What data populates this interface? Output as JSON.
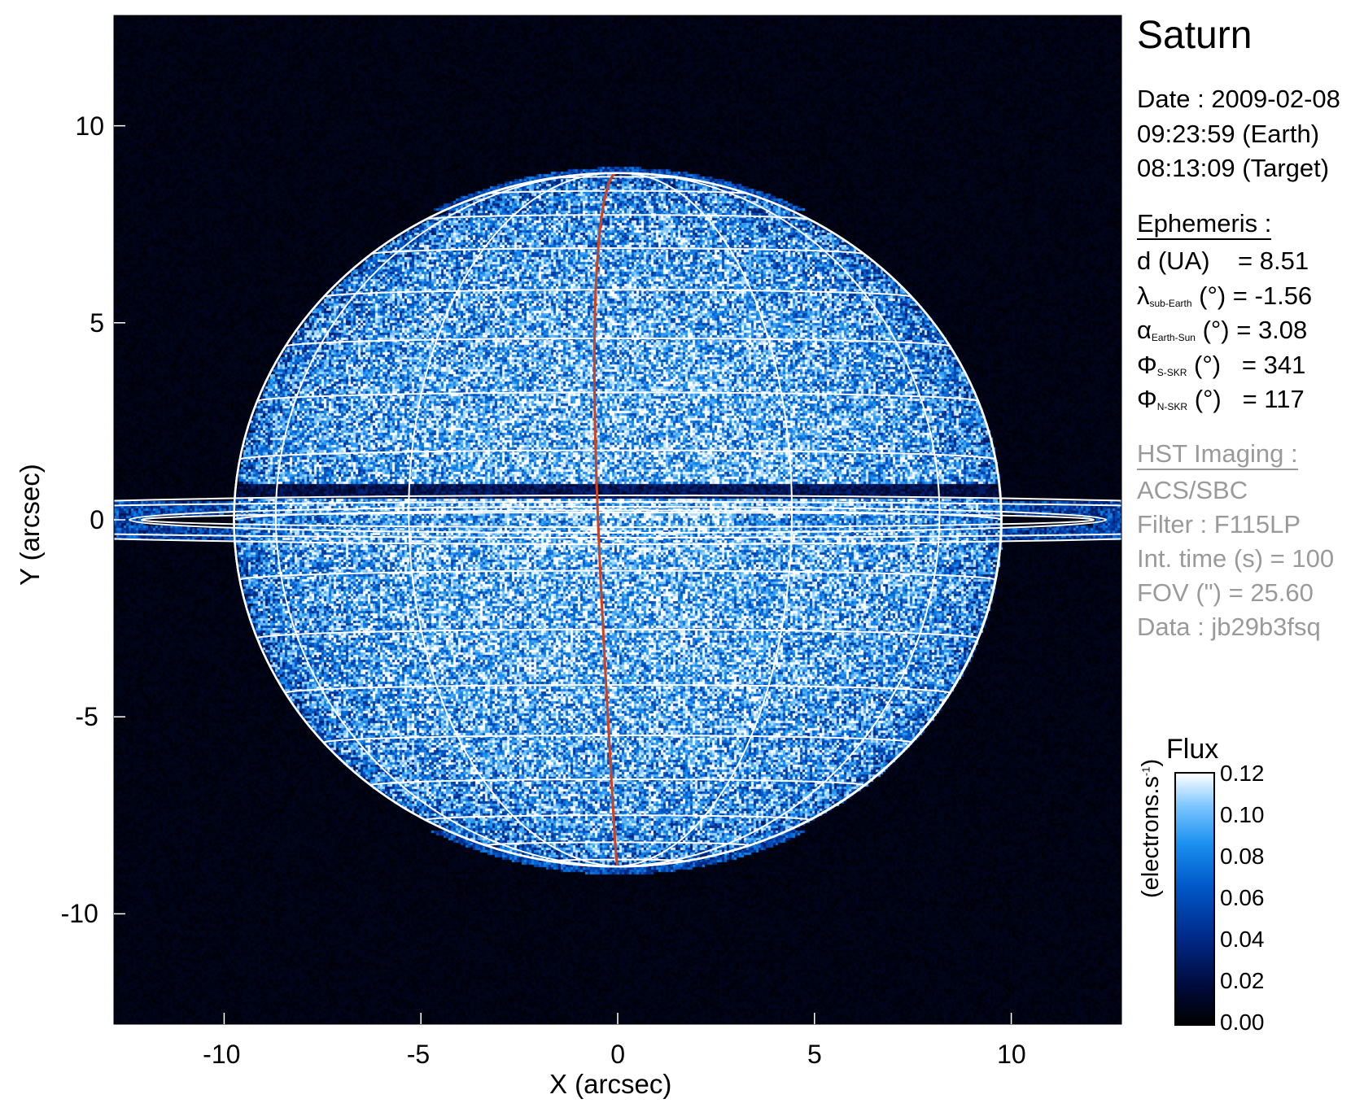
{
  "title": "Saturn",
  "observation": {
    "date_line": "Date : 2009-02-08",
    "earth_time_line": "09:23:59 (Earth)",
    "target_time_line": "08:13:09 (Target)"
  },
  "ephemeris": {
    "heading": "Ephemeris :",
    "rows": [
      {
        "symbol": "d",
        "sub": "",
        "unit": " (UA)",
        "eq": "    = 8.51"
      },
      {
        "symbol": "λ",
        "sub": "sub-Earth",
        "unit": " (°)",
        "eq": " = -1.56"
      },
      {
        "symbol": "α",
        "sub": "Earth-Sun",
        "unit": " (°)",
        "eq": " = 3.08"
      },
      {
        "symbol": "Φ",
        "sub": "S-SKR",
        "unit": " (°)",
        "eq": "   = 341"
      },
      {
        "symbol": "Φ",
        "sub": "N-SKR",
        "unit": " (°)",
        "eq": "   = 117"
      }
    ]
  },
  "hst": {
    "heading": "HST Imaging :",
    "lines": [
      "ACS/SBC",
      "Filter : F115LP",
      "Int. time (s) = 100",
      "FOV (\") = 25.60",
      "Data : jb29b3fsq"
    ]
  },
  "colors": {
    "text_gray": "#9a9a9a",
    "grid": "#ffffff",
    "central_meridian": "#d2421a",
    "background": "#000008"
  },
  "chart_data": {
    "type": "heatmap",
    "title": "Saturn",
    "xlabel": "X (arcsec)",
    "ylabel": "Y (arcsec)",
    "xlim": [
      -12.8,
      12.8
    ],
    "ylim": [
      -12.8,
      12.8
    ],
    "xticks": [
      -10,
      -5,
      0,
      5,
      10
    ],
    "yticks": [
      10,
      5,
      0,
      -5,
      -10
    ],
    "xtick_labels": [
      "-10",
      "-5",
      "0",
      "5",
      "10"
    ],
    "ytick_labels": [
      "10",
      "5",
      "0",
      "-5",
      "-10"
    ],
    "planet": {
      "equatorial_radius_arcsec": 9.75,
      "polar_radius_arcsec": 8.8,
      "sub_earth_latitude_deg": -1.56
    },
    "grid": {
      "latitude_step_deg": 10,
      "longitude_step_deg": 30,
      "central_meridian_offset_deg": -3
    },
    "colorbar": {
      "title": "Flux",
      "label": "(electrons.s",
      "label_sup": "-1",
      "label_end": ")",
      "range": [
        0.0,
        0.12
      ],
      "ticks": [
        0.0,
        0.02,
        0.04,
        0.06,
        0.08,
        0.1,
        0.12
      ],
      "tick_labels": [
        "0.00",
        "0.02",
        "0.04",
        "0.06",
        "0.08",
        "0.10",
        "0.12"
      ],
      "colormap": [
        "#000000",
        "#000a3a",
        "#002a8a",
        "#0058c8",
        "#1a90f0",
        "#7cc6ff",
        "#ffffff"
      ]
    }
  }
}
